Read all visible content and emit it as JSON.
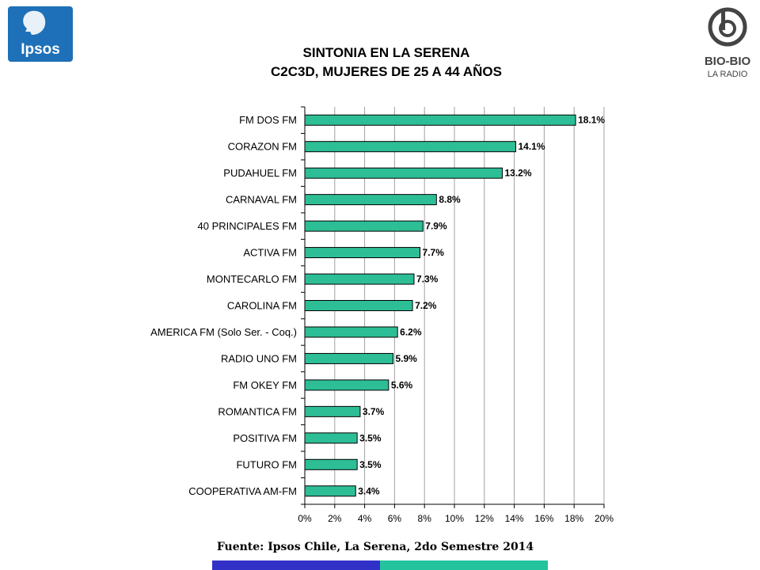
{
  "logos": {
    "ipsos_text": "Ipsos",
    "biobio_line1": "BIO-BIO",
    "biobio_line2": "LA RADIO"
  },
  "title_line1": "SINTONIA EN LA SERENA",
  "title_line2": "C2C3D, MUJERES DE 25 A 44 AÑOS",
  "source": "Fuente: Ipsos Chile, La Serena, 2do Semestre 2014",
  "colors": {
    "bar": "#2DBE96",
    "ipsos_blue": "#1E70B8",
    "footer_blue": "#3131C8",
    "footer_teal": "#23C39E",
    "grid": "#A0A0A0"
  },
  "chart_data": {
    "type": "bar",
    "orientation": "horizontal",
    "categories": [
      "FM DOS FM",
      "CORAZON FM",
      "PUDAHUEL FM",
      "CARNAVAL FM",
      "40 PRINCIPALES FM",
      "ACTIVA  FM",
      "MONTECARLO FM",
      "CAROLINA FM",
      "AMERICA FM  (Solo Ser. - Coq.)",
      "RADIO UNO FM",
      "FM OKEY FM",
      "ROMANTICA FM",
      "POSITIVA FM",
      "FUTURO FM",
      "COOPERATIVA AM-FM"
    ],
    "values": [
      18.1,
      14.1,
      13.2,
      8.8,
      7.9,
      7.7,
      7.3,
      7.2,
      6.2,
      5.9,
      5.6,
      3.7,
      3.5,
      3.5,
      3.4
    ],
    "value_labels": [
      "18.1%",
      "14.1%",
      "13.2%",
      "8.8%",
      "7.9%",
      "7.7%",
      "7.3%",
      "7.2%",
      "6.2%",
      "5.9%",
      "5.6%",
      "3.7%",
      "3.5%",
      "3.5%",
      "3.4%"
    ],
    "xlim": [
      0,
      20
    ],
    "xticks": [
      "0%",
      "2%",
      "4%",
      "6%",
      "8%",
      "10%",
      "12%",
      "14%",
      "16%",
      "18%",
      "20%"
    ],
    "grid": "vertical",
    "legend": "none"
  }
}
